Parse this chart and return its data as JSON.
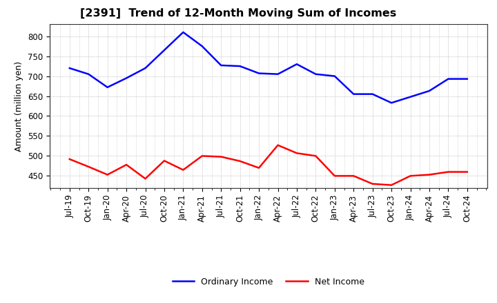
{
  "title": "[2391]  Trend of 12-Month Moving Sum of Incomes",
  "ylabel": "Amount (million yen)",
  "background_color": "#ffffff",
  "plot_bg_color": "#ffffff",
  "grid_color": "#aaaaaa",
  "x_labels": [
    "Jul-19",
    "Oct-19",
    "Jan-20",
    "Apr-20",
    "Jul-20",
    "Oct-20",
    "Jan-21",
    "Apr-21",
    "Jul-21",
    "Oct-21",
    "Jan-22",
    "Apr-22",
    "Jul-22",
    "Oct-22",
    "Jan-23",
    "Apr-23",
    "Jul-23",
    "Oct-23",
    "Jan-24",
    "Apr-24",
    "Jul-24",
    "Oct-24"
  ],
  "ordinary_income": [
    720,
    705,
    672,
    695,
    720,
    765,
    810,
    775,
    727,
    725,
    707,
    705,
    730,
    705,
    700,
    655,
    655,
    633,
    648,
    663,
    693,
    693
  ],
  "net_income": [
    492,
    473,
    453,
    478,
    443,
    488,
    465,
    500,
    498,
    487,
    470,
    527,
    507,
    500,
    450,
    450,
    430,
    427,
    450,
    453,
    460,
    460
  ],
  "ordinary_color": "#0000ff",
  "net_color": "#ff0000",
  "line_width": 1.8,
  "ylim_min": 420,
  "ylim_max": 830,
  "yticks": [
    450,
    500,
    550,
    600,
    650,
    700,
    750,
    800
  ],
  "legend_labels": [
    "Ordinary Income",
    "Net Income"
  ],
  "title_fontsize": 11.5,
  "ylabel_fontsize": 9,
  "tick_fontsize": 8.5
}
